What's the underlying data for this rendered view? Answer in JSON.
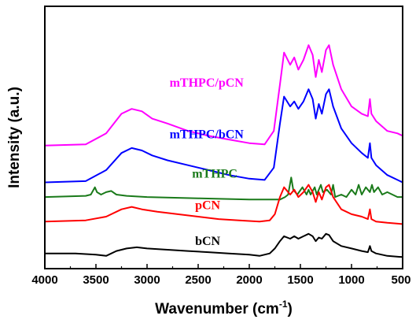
{
  "chart_data": {
    "type": "line",
    "xlabel": "Wavenumber (cm",
    "xlabel_sup": "-1",
    "xlabel_close": ")",
    "ylabel": "Intensity (a.u.)",
    "xlim": [
      4000,
      500
    ],
    "x_reversed": true,
    "y_ticks_shown": false,
    "x_ticks": [
      4000,
      3500,
      3000,
      2500,
      2000,
      1500,
      1000,
      500
    ],
    "x_tick_labels": [
      "4000",
      "3500",
      "3000",
      "2500",
      "2000",
      "1500",
      "1000",
      "500"
    ],
    "ylim": [
      0,
      100
    ],
    "grid": false,
    "series": [
      {
        "name": "mTHPC/pCN",
        "color": "#ff00ff",
        "points": [
          [
            4000,
            47
          ],
          [
            3600,
            47.5
          ],
          [
            3400,
            52
          ],
          [
            3250,
            60
          ],
          [
            3150,
            62
          ],
          [
            3050,
            61
          ],
          [
            2950,
            58
          ],
          [
            2800,
            56
          ],
          [
            2600,
            53
          ],
          [
            2400,
            51
          ],
          [
            2200,
            49.5
          ],
          [
            2000,
            48
          ],
          [
            1850,
            47.5
          ],
          [
            1760,
            53
          ],
          [
            1700,
            72
          ],
          [
            1660,
            85
          ],
          [
            1600,
            80
          ],
          [
            1560,
            83
          ],
          [
            1520,
            78
          ],
          [
            1470,
            82
          ],
          [
            1420,
            88
          ],
          [
            1380,
            84
          ],
          [
            1350,
            75
          ],
          [
            1320,
            82
          ],
          [
            1290,
            77
          ],
          [
            1250,
            86
          ],
          [
            1220,
            88
          ],
          [
            1180,
            80
          ],
          [
            1100,
            70
          ],
          [
            1000,
            63
          ],
          [
            900,
            60
          ],
          [
            840,
            59
          ],
          [
            820,
            66
          ],
          [
            805,
            60
          ],
          [
            760,
            57
          ],
          [
            650,
            53
          ],
          [
            550,
            52
          ],
          [
            500,
            51
          ]
        ]
      },
      {
        "name": "mTHPC/bCN",
        "color": "#0000ff",
        "points": [
          [
            4000,
            32
          ],
          [
            3600,
            32.5
          ],
          [
            3400,
            37
          ],
          [
            3250,
            44
          ],
          [
            3150,
            46
          ],
          [
            3050,
            45
          ],
          [
            2950,
            43
          ],
          [
            2800,
            41
          ],
          [
            2600,
            39
          ],
          [
            2400,
            37
          ],
          [
            2200,
            35
          ],
          [
            2000,
            33.5
          ],
          [
            1850,
            33
          ],
          [
            1760,
            38
          ],
          [
            1700,
            56
          ],
          [
            1660,
            67
          ],
          [
            1600,
            63
          ],
          [
            1560,
            65
          ],
          [
            1520,
            62
          ],
          [
            1470,
            65
          ],
          [
            1420,
            70
          ],
          [
            1380,
            66
          ],
          [
            1350,
            58
          ],
          [
            1320,
            64
          ],
          [
            1290,
            60
          ],
          [
            1250,
            68
          ],
          [
            1220,
            70
          ],
          [
            1180,
            63
          ],
          [
            1100,
            54
          ],
          [
            1000,
            48
          ],
          [
            900,
            44
          ],
          [
            840,
            42
          ],
          [
            820,
            48
          ],
          [
            805,
            42
          ],
          [
            760,
            39
          ],
          [
            650,
            35
          ],
          [
            550,
            33
          ],
          [
            500,
            32
          ]
        ]
      },
      {
        "name": "mTHPC",
        "color": "#1a7a1a",
        "points": [
          [
            4000,
            26
          ],
          [
            3600,
            26.5
          ],
          [
            3550,
            27
          ],
          [
            3510,
            30
          ],
          [
            3490,
            28
          ],
          [
            3450,
            27
          ],
          [
            3400,
            28
          ],
          [
            3350,
            28.5
          ],
          [
            3300,
            27
          ],
          [
            3200,
            26.5
          ],
          [
            3000,
            26
          ],
          [
            2500,
            25.5
          ],
          [
            2000,
            25
          ],
          [
            1700,
            25
          ],
          [
            1650,
            26
          ],
          [
            1620,
            27
          ],
          [
            1590,
            34
          ],
          [
            1570,
            29
          ],
          [
            1530,
            27
          ],
          [
            1480,
            30
          ],
          [
            1440,
            27
          ],
          [
            1420,
            29
          ],
          [
            1400,
            27
          ],
          [
            1360,
            30
          ],
          [
            1340,
            27
          ],
          [
            1300,
            31
          ],
          [
            1280,
            28
          ],
          [
            1240,
            29
          ],
          [
            1200,
            27
          ],
          [
            1180,
            31
          ],
          [
            1160,
            26
          ],
          [
            1100,
            27
          ],
          [
            1050,
            26
          ],
          [
            1000,
            29
          ],
          [
            960,
            27
          ],
          [
            930,
            31
          ],
          [
            900,
            27
          ],
          [
            860,
            30
          ],
          [
            820,
            28
          ],
          [
            800,
            31
          ],
          [
            780,
            28
          ],
          [
            740,
            30
          ],
          [
            700,
            27
          ],
          [
            650,
            28
          ],
          [
            550,
            26
          ],
          [
            500,
            26
          ]
        ]
      },
      {
        "name": "pCN",
        "color": "#ff0000",
        "points": [
          [
            4000,
            16
          ],
          [
            3600,
            16.5
          ],
          [
            3400,
            18
          ],
          [
            3250,
            21
          ],
          [
            3150,
            22
          ],
          [
            3050,
            21
          ],
          [
            2900,
            20
          ],
          [
            2700,
            19
          ],
          [
            2500,
            18
          ],
          [
            2300,
            17
          ],
          [
            2100,
            16.5
          ],
          [
            1900,
            16
          ],
          [
            1800,
            16.5
          ],
          [
            1750,
            19
          ],
          [
            1700,
            26
          ],
          [
            1660,
            30
          ],
          [
            1600,
            27
          ],
          [
            1560,
            29
          ],
          [
            1520,
            26
          ],
          [
            1470,
            28
          ],
          [
            1420,
            31
          ],
          [
            1380,
            28
          ],
          [
            1350,
            24
          ],
          [
            1320,
            28
          ],
          [
            1290,
            25
          ],
          [
            1250,
            30
          ],
          [
            1220,
            31
          ],
          [
            1180,
            26
          ],
          [
            1100,
            21
          ],
          [
            1000,
            19
          ],
          [
            900,
            18
          ],
          [
            840,
            17
          ],
          [
            820,
            21
          ],
          [
            805,
            17
          ],
          [
            760,
            16
          ],
          [
            650,
            15.5
          ],
          [
            500,
            15
          ]
        ]
      },
      {
        "name": "bCN",
        "color": "#000000",
        "points": [
          [
            4000,
            3
          ],
          [
            3700,
            3
          ],
          [
            3500,
            2.5
          ],
          [
            3400,
            2
          ],
          [
            3300,
            4
          ],
          [
            3200,
            5
          ],
          [
            3100,
            5.5
          ],
          [
            3000,
            5
          ],
          [
            2800,
            4.5
          ],
          [
            2600,
            4
          ],
          [
            2400,
            3.5
          ],
          [
            2200,
            3
          ],
          [
            2000,
            2.5
          ],
          [
            1900,
            2
          ],
          [
            1800,
            3
          ],
          [
            1750,
            5
          ],
          [
            1700,
            8
          ],
          [
            1660,
            10
          ],
          [
            1600,
            9
          ],
          [
            1560,
            10
          ],
          [
            1520,
            9
          ],
          [
            1470,
            10
          ],
          [
            1420,
            11
          ],
          [
            1380,
            10
          ],
          [
            1350,
            8
          ],
          [
            1320,
            9.5
          ],
          [
            1290,
            9
          ],
          [
            1250,
            11
          ],
          [
            1220,
            10.5
          ],
          [
            1180,
            8
          ],
          [
            1100,
            6
          ],
          [
            1000,
            5
          ],
          [
            900,
            4
          ],
          [
            840,
            3.5
          ],
          [
            820,
            6
          ],
          [
            805,
            4
          ],
          [
            760,
            3
          ],
          [
            650,
            2
          ],
          [
            500,
            1.5
          ]
        ]
      }
    ],
    "annotations": [
      {
        "text": "mTHPC/pCN",
        "x": 2780,
        "y": 71,
        "color": "#ff00ff"
      },
      {
        "text": "mTHPC/bCN",
        "x": 2780,
        "y": 50,
        "color": "#0000ff"
      },
      {
        "text": "mTHPC",
        "x": 2560,
        "y": 34,
        "color": "#1a7a1a"
      },
      {
        "text": "pCN",
        "x": 2530,
        "y": 21,
        "color": "#ff0000"
      },
      {
        "text": "bCN",
        "x": 2530,
        "y": 6.5,
        "color": "#000000"
      }
    ]
  }
}
